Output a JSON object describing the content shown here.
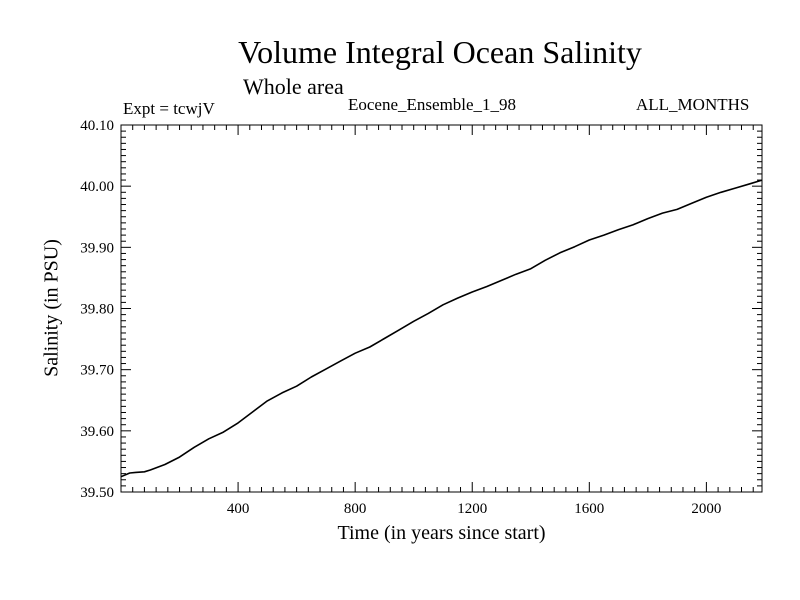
{
  "chart_data": {
    "type": "line",
    "title": "Volume Integral Ocean Salinity",
    "subtitle": "Whole area",
    "annotations": {
      "left": "Expt = tcwjV",
      "center": "Eocene_Ensemble_1_98",
      "right": "ALL_MONTHS"
    },
    "xlabel": "Time (in years since start)",
    "ylabel": "Salinity (in PSU)",
    "xlim": [
      0,
      2190
    ],
    "ylim": [
      39.5,
      40.1
    ],
    "xticks": [
      400,
      800,
      1200,
      1600,
      2000
    ],
    "yticks": [
      "39.50",
      "39.60",
      "39.70",
      "39.80",
      "39.90",
      "40.00",
      "40.10"
    ],
    "grid": false,
    "series": [
      {
        "color": "#000000",
        "x": [
          0,
          30,
          50,
          80,
          100,
          150,
          200,
          250,
          300,
          350,
          400,
          450,
          500,
          550,
          600,
          650,
          700,
          750,
          800,
          850,
          900,
          950,
          1000,
          1050,
          1100,
          1150,
          1200,
          1250,
          1300,
          1350,
          1400,
          1450,
          1500,
          1550,
          1600,
          1650,
          1700,
          1750,
          1800,
          1850,
          1900,
          1950,
          2000,
          2050,
          2100,
          2150,
          2190
        ],
        "y": [
          39.525,
          39.531,
          39.532,
          39.533,
          39.536,
          39.545,
          39.557,
          39.573,
          39.587,
          39.598,
          39.613,
          39.631,
          39.649,
          39.662,
          39.673,
          39.688,
          39.701,
          39.714,
          39.727,
          39.737,
          39.751,
          39.765,
          39.779,
          39.792,
          39.806,
          39.817,
          39.827,
          39.836,
          39.846,
          39.856,
          39.865,
          39.879,
          39.891,
          39.901,
          39.912,
          39.92,
          39.929,
          39.937,
          39.947,
          39.956,
          39.962,
          39.972,
          39.982,
          39.99,
          39.997,
          40.004,
          40.01
        ]
      }
    ]
  }
}
